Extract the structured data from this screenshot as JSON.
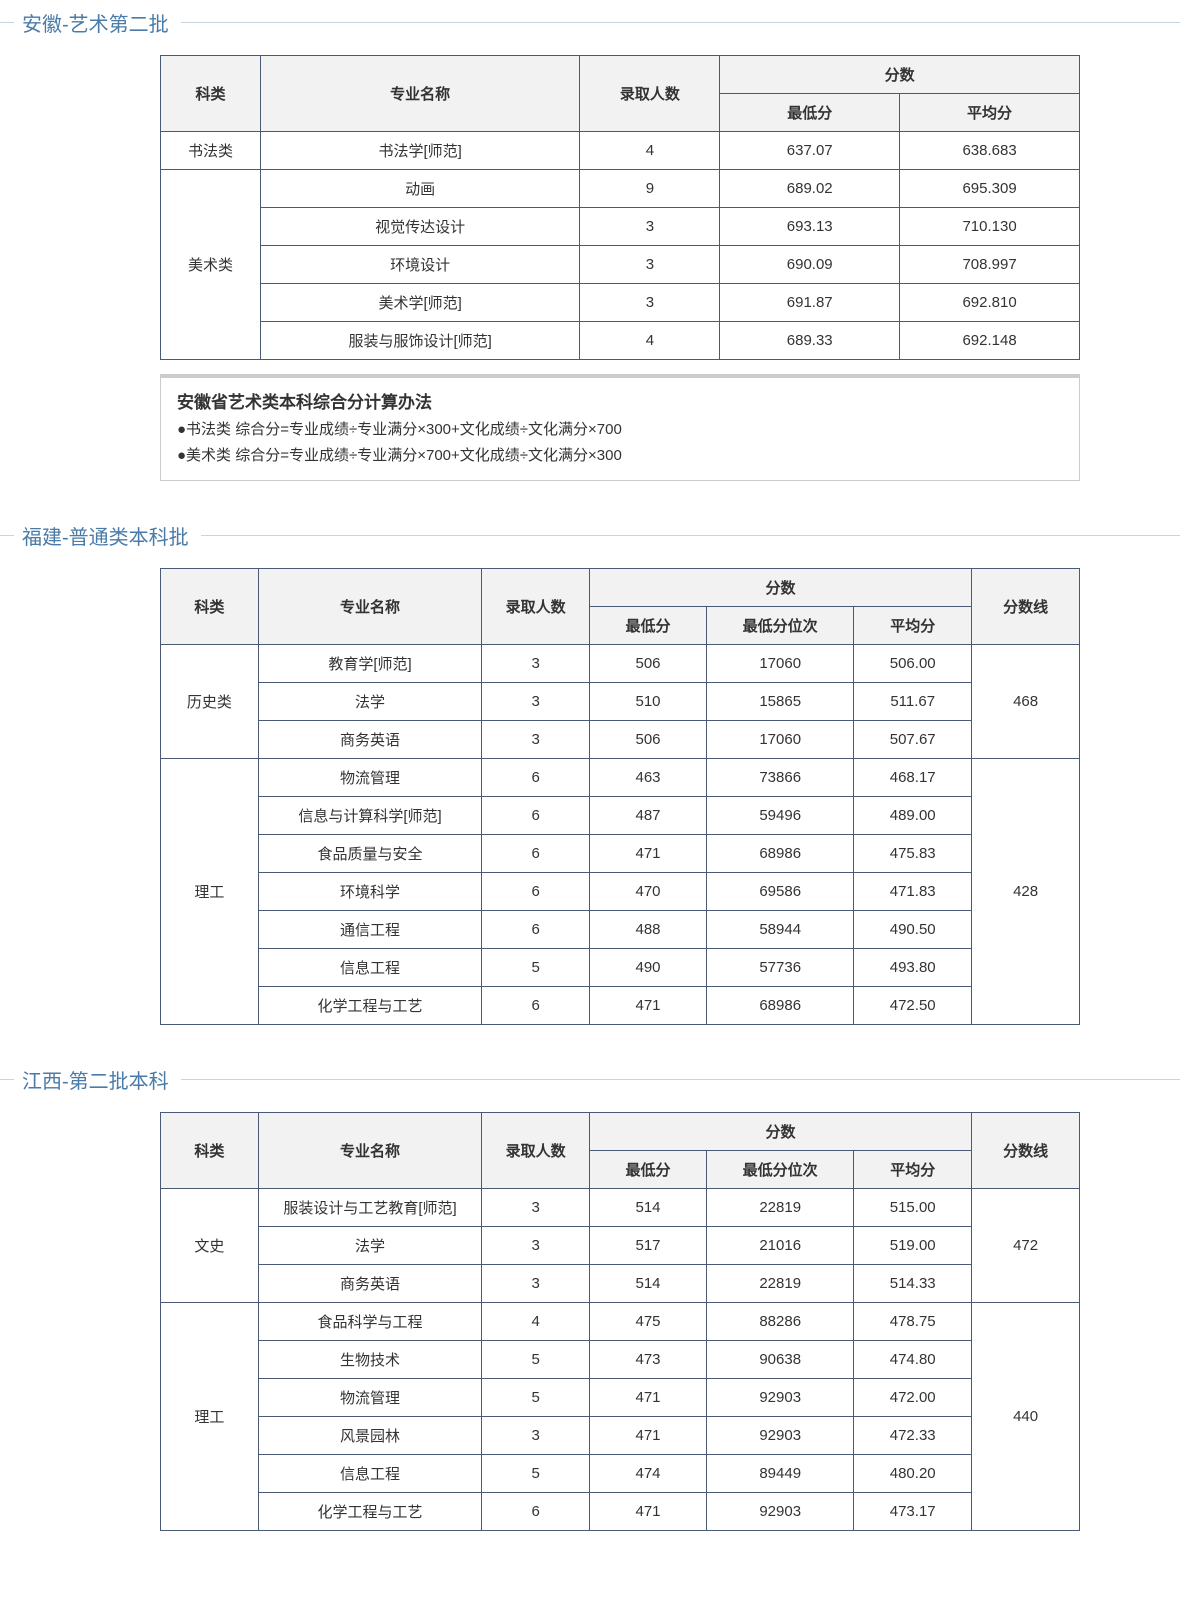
{
  "headers": {
    "category": "科类",
    "major": "专业名称",
    "admitted": "录取人数",
    "score": "分数",
    "min": "最低分",
    "min_rank": "最低分位次",
    "avg": "平均分",
    "line": "分数线"
  },
  "sections": [
    {
      "title": "安徽-艺术第二批",
      "type": "simple",
      "groups": [
        {
          "category": "书法类",
          "rows": [
            {
              "major": "书法学[师范]",
              "count": "4",
              "min": "637.07",
              "avg": "638.683"
            }
          ]
        },
        {
          "category": "美术类",
          "rows": [
            {
              "major": "动画",
              "count": "9",
              "min": "689.02",
              "avg": "695.309"
            },
            {
              "major": "视觉传达设计",
              "count": "3",
              "min": "693.13",
              "avg": "710.130"
            },
            {
              "major": "环境设计",
              "count": "3",
              "min": "690.09",
              "avg": "708.997"
            },
            {
              "major": "美术学[师范]",
              "count": "3",
              "min": "691.87",
              "avg": "692.810"
            },
            {
              "major": "服装与服饰设计[师范]",
              "count": "4",
              "min": "689.33",
              "avg": "692.148"
            }
          ]
        }
      ],
      "note": {
        "title": "安徽省艺术类本科综合分计算办法",
        "lines": [
          "●书法类 综合分=专业成绩÷专业满分×300+文化成绩÷文化满分×700",
          "●美术类 综合分=专业成绩÷专业满分×700+文化成绩÷文化满分×300"
        ]
      }
    },
    {
      "title": "福建-普通类本科批",
      "type": "rank",
      "groups": [
        {
          "category": "历史类",
          "line": "468",
          "rows": [
            {
              "major": "教育学[师范]",
              "count": "3",
              "min": "506",
              "rank": "17060",
              "avg": "506.00"
            },
            {
              "major": "法学",
              "count": "3",
              "min": "510",
              "rank": "15865",
              "avg": "511.67"
            },
            {
              "major": "商务英语",
              "count": "3",
              "min": "506",
              "rank": "17060",
              "avg": "507.67"
            }
          ]
        },
        {
          "category": "理工",
          "line": "428",
          "rows": [
            {
              "major": "物流管理",
              "count": "6",
              "min": "463",
              "rank": "73866",
              "avg": "468.17"
            },
            {
              "major": "信息与计算科学[师范]",
              "count": "6",
              "min": "487",
              "rank": "59496",
              "avg": "489.00"
            },
            {
              "major": "食品质量与安全",
              "count": "6",
              "min": "471",
              "rank": "68986",
              "avg": "475.83"
            },
            {
              "major": "环境科学",
              "count": "6",
              "min": "470",
              "rank": "69586",
              "avg": "471.83"
            },
            {
              "major": "通信工程",
              "count": "6",
              "min": "488",
              "rank": "58944",
              "avg": "490.50"
            },
            {
              "major": "信息工程",
              "count": "5",
              "min": "490",
              "rank": "57736",
              "avg": "493.80"
            },
            {
              "major": "化学工程与工艺",
              "count": "6",
              "min": "471",
              "rank": "68986",
              "avg": "472.50"
            }
          ]
        }
      ]
    },
    {
      "title": "江西-第二批本科",
      "type": "rank",
      "groups": [
        {
          "category": "文史",
          "line": "472",
          "rows": [
            {
              "major": "服装设计与工艺教育[师范]",
              "count": "3",
              "min": "514",
              "rank": "22819",
              "avg": "515.00"
            },
            {
              "major": "法学",
              "count": "3",
              "min": "517",
              "rank": "21016",
              "avg": "519.00"
            },
            {
              "major": "商务英语",
              "count": "3",
              "min": "514",
              "rank": "22819",
              "avg": "514.33"
            }
          ]
        },
        {
          "category": "理工",
          "line": "440",
          "rows": [
            {
              "major": "食品科学与工程",
              "count": "4",
              "min": "475",
              "rank": "88286",
              "avg": "478.75"
            },
            {
              "major": "生物技术",
              "count": "5",
              "min": "473",
              "rank": "90638",
              "avg": "474.80"
            },
            {
              "major": "物流管理",
              "count": "5",
              "min": "471",
              "rank": "92903",
              "avg": "472.00"
            },
            {
              "major": "风景园林",
              "count": "3",
              "min": "471",
              "rank": "92903",
              "avg": "472.33"
            },
            {
              "major": "信息工程",
              "count": "5",
              "min": "474",
              "rank": "89449",
              "avg": "480.20"
            },
            {
              "major": "化学工程与工艺",
              "count": "6",
              "min": "471",
              "rank": "92903",
              "avg": "473.17"
            }
          ]
        }
      ]
    }
  ]
}
